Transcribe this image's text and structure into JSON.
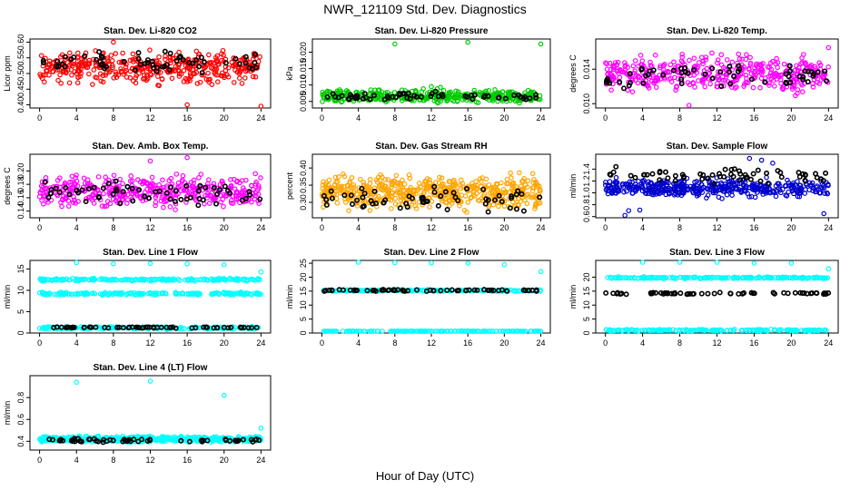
{
  "title": "NWR_121109 Std. Dev. Diagnostics",
  "x_axis_title": "Hour of Day (UTC)",
  "chart_data": [
    {
      "type": "scatter",
      "title": "Stan. Dev. Li-820 CO2",
      "ylabel": "Licor ppm",
      "xlim": [
        0,
        24
      ],
      "ylim": [
        0.39,
        0.61
      ],
      "xticks": [
        0,
        4,
        8,
        12,
        16,
        20,
        24
      ],
      "yticks": [
        0.4,
        0.45,
        0.5,
        0.55,
        0.6
      ],
      "ytick_labels": [
        "0.40",
        "0.45",
        "0.50",
        "0.55",
        "0.60"
      ],
      "series": [
        {
          "color": "#ff0000",
          "center": 0.52,
          "spread": 0.03,
          "count": 420,
          "outliers": [
            [
              8,
              0.6
            ],
            [
              16,
              0.4
            ],
            [
              24,
              0.39
            ]
          ]
        },
        {
          "color": "#000000",
          "center": 0.535,
          "spread": 0.02,
          "count": 60,
          "outliers": []
        }
      ]
    },
    {
      "type": "scatter",
      "title": "Stan. Dev. Li-820 Pressure",
      "ylabel": "kPa",
      "xlim": [
        0,
        24
      ],
      "ylim": [
        0.003,
        0.024
      ],
      "xticks": [
        0,
        4,
        8,
        12,
        16,
        20,
        24
      ],
      "yticks": [
        0.005,
        0.01,
        0.015,
        0.02
      ],
      "ytick_labels": [
        "0.005",
        "0.010",
        "0.015",
        "0.020"
      ],
      "series": [
        {
          "color": "#00cc00",
          "center": 0.0065,
          "spread": 0.0012,
          "count": 420,
          "outliers": [
            [
              8,
              0.0225
            ],
            [
              16,
              0.023
            ],
            [
              24,
              0.0225
            ],
            [
              12,
              0.0095
            ],
            [
              13,
              0.0093
            ]
          ]
        },
        {
          "color": "#000000",
          "center": 0.0065,
          "spread": 0.0008,
          "count": 60,
          "outliers": []
        }
      ]
    },
    {
      "type": "scatter",
      "title": "Stan. Dev. Li-820 Temp.",
      "ylabel": "degrees C",
      "xlim": [
        0,
        24
      ],
      "ylim": [
        0.0095,
        0.0175
      ],
      "xticks": [
        0,
        4,
        8,
        12,
        16,
        20,
        24
      ],
      "yticks": [
        0.01,
        0.014
      ],
      "ytick_labels": [
        "0.010",
        "0.014"
      ],
      "series": [
        {
          "color": "#ff00ff",
          "center": 0.0135,
          "spread": 0.0013,
          "count": 420,
          "outliers": [
            [
              9,
              0.0098
            ],
            [
              24,
              0.0165
            ]
          ]
        },
        {
          "color": "#000000",
          "center": 0.0133,
          "spread": 0.0009,
          "count": 60,
          "outliers": []
        }
      ]
    },
    {
      "type": "scatter",
      "title": "Stan. Dev. Amb. Box Temp.",
      "ylabel": "degrees C",
      "xlim": [
        0,
        24
      ],
      "ylim": [
        0.13,
        0.225
      ],
      "xticks": [
        0,
        4,
        8,
        12,
        16,
        20,
        24
      ],
      "yticks": [
        0.14,
        0.16,
        0.18,
        0.2
      ],
      "ytick_labels": [
        "0.14",
        "0.16",
        "0.18",
        "0.20"
      ],
      "series": [
        {
          "color": "#ff00ff",
          "center": 0.17,
          "spread": 0.014,
          "count": 420,
          "outliers": [
            [
              12,
              0.215
            ],
            [
              16,
              0.22
            ]
          ]
        },
        {
          "color": "#000000",
          "center": 0.165,
          "spread": 0.01,
          "count": 60,
          "outliers": []
        }
      ]
    },
    {
      "type": "scatter",
      "title": "Stan. Dev. Gas Stream RH",
      "ylabel": "percent",
      "xlim": [
        0,
        24
      ],
      "ylim": [
        0.255,
        0.44
      ],
      "xticks": [
        0,
        4,
        8,
        12,
        16,
        20,
        24
      ],
      "yticks": [
        0.3,
        0.35,
        0.4
      ],
      "ytick_labels": [
        "0.30",
        "0.35",
        "0.40"
      ],
      "series": [
        {
          "color": "#ffa500",
          "center": 0.33,
          "spread": 0.03,
          "count": 520,
          "outliers": []
        },
        {
          "color": "#000000",
          "center": 0.31,
          "spread": 0.025,
          "count": 60,
          "outliers": []
        }
      ]
    },
    {
      "type": "scatter",
      "title": "Stan. Dev. Sample Flow",
      "ylabel": "ml/min",
      "xlim": [
        0,
        24
      ],
      "ylim": [
        0.58,
        1.65
      ],
      "xticks": [
        0,
        4,
        8,
        12,
        16,
        20,
        24
      ],
      "yticks": [
        0.6,
        0.8,
        1.0,
        1.2,
        1.4
      ],
      "ytick_labels": [
        "0.6",
        "0.8",
        "1.0",
        "1.2",
        "1.4"
      ],
      "series": [
        {
          "color": "#0000cc",
          "center": 1.08,
          "spread": 0.09,
          "count": 440,
          "outliers": [
            [
              2.1,
              0.62
            ],
            [
              2.5,
              0.7
            ],
            [
              3.7,
              0.71
            ],
            [
              15.5,
              1.58
            ],
            [
              16.8,
              1.55
            ],
            [
              18,
              1.5
            ],
            [
              23.5,
              0.65
            ]
          ]
        },
        {
          "color": "#000000",
          "center": 1.3,
          "spread": 0.08,
          "count": 60,
          "outliers": []
        }
      ]
    },
    {
      "type": "scatter",
      "title": "Stan. Dev. Line 1 Flow",
      "ylabel": "ml/min",
      "xlim": [
        0,
        24
      ],
      "ylim": [
        0,
        17
      ],
      "xticks": [
        0,
        4,
        8,
        12,
        16,
        20,
        24
      ],
      "yticks": [
        0,
        5,
        10,
        15
      ],
      "ytick_labels": [
        "0",
        "5",
        "10",
        "15"
      ],
      "series": [
        {
          "color": "#00ffff",
          "bands": [
            12.5,
            9.2,
            1.2
          ],
          "spread": 0.3,
          "count": 600,
          "outliers": [
            [
              4,
              16.5
            ],
            [
              8,
              16.2
            ],
            [
              12,
              16.3
            ],
            [
              16,
              16.2
            ],
            [
              20,
              16
            ],
            [
              24,
              14.3
            ]
          ]
        },
        {
          "color": "#000000",
          "bands": [
            1.3
          ],
          "spread": 0.15,
          "count": 60,
          "outliers": []
        }
      ]
    },
    {
      "type": "scatter",
      "title": "Stan. Dev. Line 2 Flow",
      "ylabel": "ml/min",
      "xlim": [
        0,
        24
      ],
      "ylim": [
        0,
        26
      ],
      "xticks": [
        0,
        4,
        8,
        12,
        16,
        20,
        24
      ],
      "yticks": [
        0,
        5,
        10,
        15,
        20,
        25
      ],
      "ytick_labels": [
        "0",
        "5",
        "10",
        "15",
        "20",
        "25"
      ],
      "series": [
        {
          "color": "#00ffff",
          "bands": [
            15.2,
            0.5
          ],
          "spread": 0.3,
          "count": 400,
          "outliers": [
            [
              4,
              25.5
            ],
            [
              8,
              25.2
            ],
            [
              12,
              25.1
            ],
            [
              16,
              25.0
            ],
            [
              20,
              24.5
            ],
            [
              24,
              22
            ]
          ]
        },
        {
          "color": "#000000",
          "bands": [
            15.3
          ],
          "spread": 0.3,
          "count": 60,
          "outliers": []
        }
      ]
    },
    {
      "type": "scatter",
      "title": "Stan. Dev. Line 3 Flow",
      "ylabel": "ml/min",
      "xlim": [
        0,
        24
      ],
      "ylim": [
        0,
        26
      ],
      "xticks": [
        0,
        4,
        8,
        12,
        16,
        20,
        24
      ],
      "yticks": [
        0,
        5,
        10,
        15,
        20
      ],
      "ytick_labels": [
        "0",
        "5",
        "10",
        "15",
        "20"
      ],
      "series": [
        {
          "color": "#00ffff",
          "bands": [
            19.8,
            1.0
          ],
          "spread": 0.3,
          "count": 400,
          "outliers": [
            [
              4,
              25.5
            ],
            [
              8,
              25.8
            ],
            [
              12,
              25.5
            ],
            [
              16,
              25.0
            ],
            [
              20,
              25.0
            ],
            [
              24,
              23
            ]
          ]
        },
        {
          "color": "#000000",
          "bands": [
            14.2
          ],
          "spread": 0.3,
          "count": 60,
          "outliers": []
        }
      ]
    },
    {
      "type": "scatter",
      "title": "Stan. Dev. Line 4 (LT) Flow",
      "ylabel": "ml/min",
      "xlim": [
        0,
        24
      ],
      "ylim": [
        0.32,
        1.0
      ],
      "xticks": [
        0,
        4,
        8,
        12,
        16,
        20,
        24
      ],
      "yticks": [
        0.4,
        0.6,
        0.8
      ],
      "ytick_labels": [
        "0.4",
        "0.6",
        "0.8"
      ],
      "series": [
        {
          "color": "#00ffff",
          "bands": [
            0.42
          ],
          "spread": 0.025,
          "count": 500,
          "outliers": [
            [
              4,
              0.94
            ],
            [
              12,
              0.95
            ],
            [
              20,
              0.82
            ],
            [
              24,
              0.52
            ]
          ]
        },
        {
          "color": "#000000",
          "bands": [
            0.41
          ],
          "spread": 0.02,
          "count": 60,
          "outliers": []
        }
      ]
    }
  ]
}
